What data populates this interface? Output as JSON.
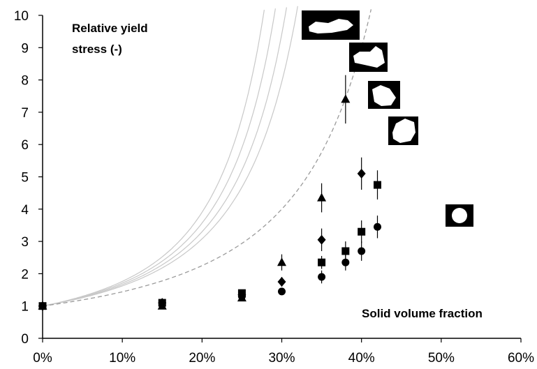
{
  "chart_data": {
    "type": "scatter",
    "title": "",
    "ylabel_lines": [
      "Relative yield",
      "stress (-)"
    ],
    "xlabel": "Solid volume fraction",
    "xlim": [
      0,
      0.6
    ],
    "ylim": [
      0,
      10
    ],
    "x_ticks": [
      0,
      0.1,
      0.2,
      0.3,
      0.4,
      0.5,
      0.6
    ],
    "x_tick_labels": [
      "0%",
      "10%",
      "20%",
      "30%",
      "40%",
      "50%",
      "60%"
    ],
    "y_ticks": [
      0,
      1,
      2,
      3,
      4,
      5,
      6,
      7,
      8,
      9,
      10
    ],
    "y_tick_labels": [
      "0",
      "1",
      "2",
      "3",
      "4",
      "5",
      "6",
      "7",
      "8",
      "9",
      "10"
    ],
    "grid": false,
    "series": [
      {
        "marker": "triangle",
        "x": [
          0,
          0.15,
          0.25,
          0.3,
          0.35,
          0.38
        ],
        "y": [
          1.0,
          1.0,
          1.25,
          2.35,
          4.35,
          7.4
        ],
        "err": [
          0,
          0,
          0,
          0.25,
          0.45,
          0.75
        ]
      },
      {
        "marker": "diamond",
        "x": [
          0,
          0.15,
          0.25,
          0.3,
          0.35,
          0.4
        ],
        "y": [
          1.0,
          1.1,
          1.35,
          1.75,
          3.05,
          5.1
        ],
        "err": [
          0,
          0,
          0,
          0.15,
          0.35,
          0.5
        ]
      },
      {
        "marker": "square",
        "x": [
          0,
          0.15,
          0.25,
          0.35,
          0.38,
          0.4,
          0.42
        ],
        "y": [
          1.0,
          1.1,
          1.4,
          2.35,
          2.7,
          3.3,
          4.75
        ],
        "err": [
          0,
          0,
          0,
          0.2,
          0.3,
          0.35,
          0.45
        ]
      },
      {
        "marker": "circle",
        "x": [
          0,
          0.25,
          0.3,
          0.35,
          0.38,
          0.4,
          0.42
        ],
        "y": [
          1.0,
          1.3,
          1.45,
          1.9,
          2.35,
          2.7,
          3.45
        ],
        "err": [
          0,
          0,
          0,
          0.2,
          0.25,
          0.3,
          0.35
        ]
      }
    ],
    "model_curves": [
      {
        "style": "solid",
        "phi_max": 0.405
      },
      {
        "style": "solid",
        "phi_max": 0.425
      },
      {
        "style": "solid",
        "phi_max": 0.445
      },
      {
        "style": "solid",
        "phi_max": 0.465
      },
      {
        "style": "dashed",
        "phi_max": 0.6
      }
    ],
    "particle_shape_icons": [
      "elongated-particle",
      "angular-particle",
      "compact-particle",
      "rounded-particle",
      "sphere-particle"
    ]
  }
}
